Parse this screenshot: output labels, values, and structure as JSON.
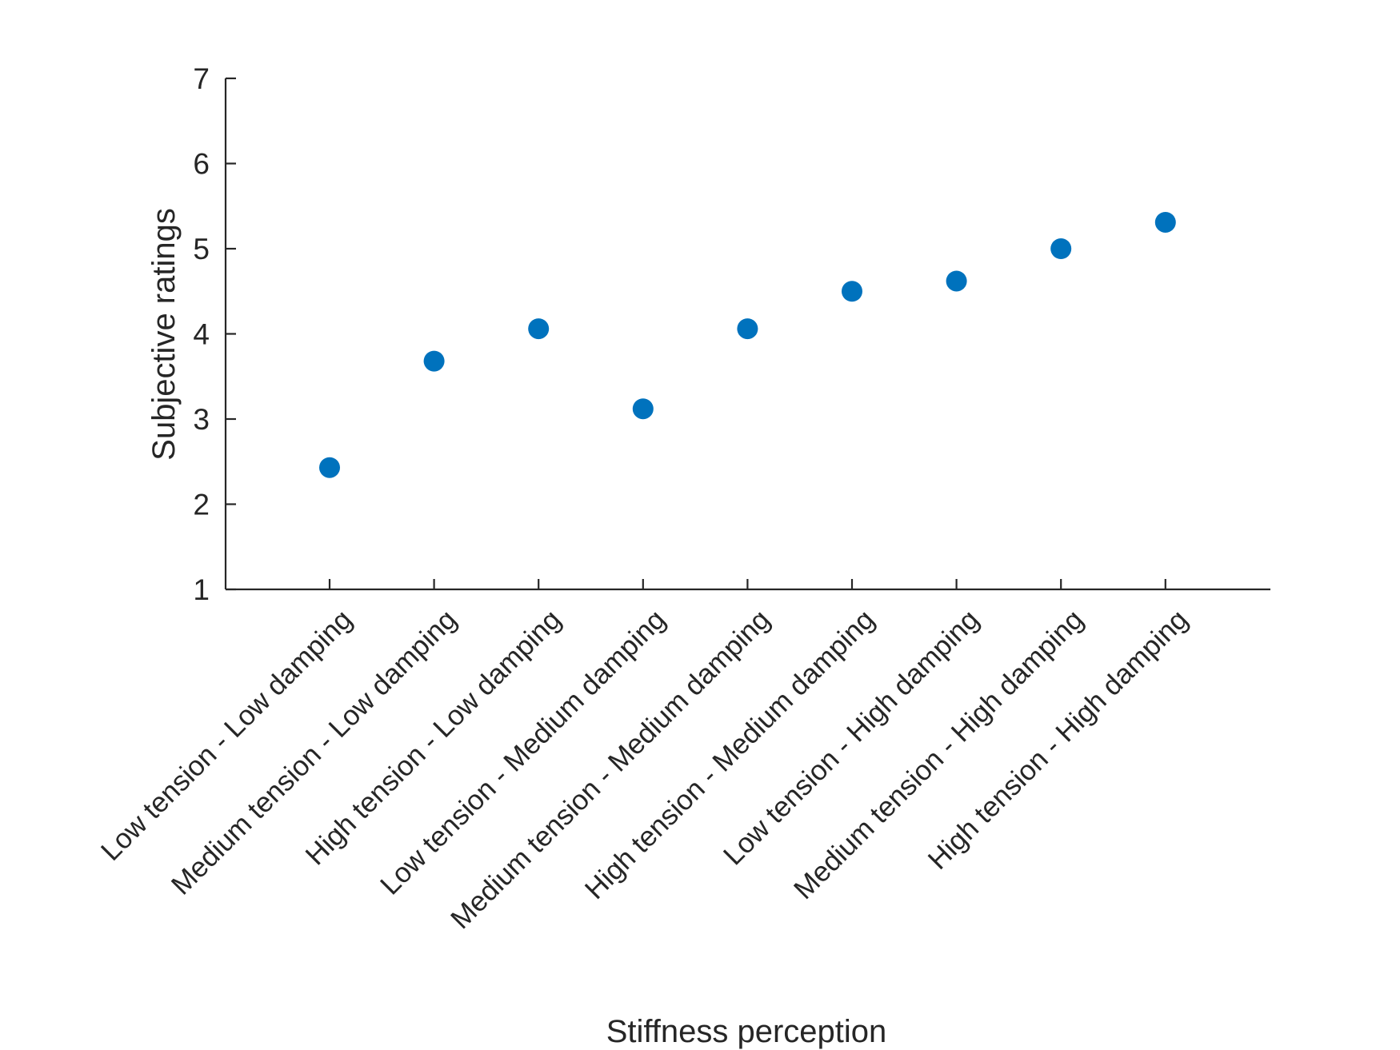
{
  "chart_data": {
    "type": "scatter",
    "title": "",
    "xlabel": "Stiffness perception",
    "ylabel": "Subjective ratings",
    "ylim": [
      1,
      7
    ],
    "yticks": [
      "1",
      "2",
      "3",
      "4",
      "5",
      "6",
      "7"
    ],
    "categories": [
      "Low tension - Low damping",
      "Medium tension - Low damping",
      "High tension - Low damping",
      "Low tension - Medium damping",
      "Medium tension - Medium damping",
      "High tension - Medium damping",
      "Low tension - High damping",
      "Medium tension - High damping",
      "High tension - High damping"
    ],
    "values": [
      2.43,
      3.68,
      4.06,
      3.12,
      4.06,
      4.5,
      4.62,
      5.0,
      5.31
    ],
    "grid": false,
    "legend": "none",
    "marker_color": "#0072BD"
  }
}
